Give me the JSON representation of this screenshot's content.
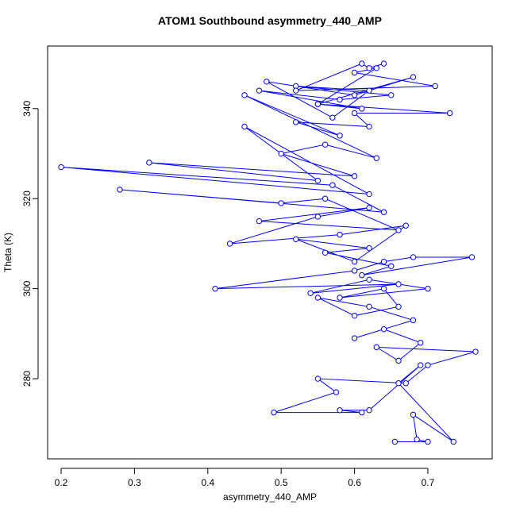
{
  "chart_data": {
    "type": "line",
    "marker": "circle",
    "title": "ATOM1 Southbound asymmetry_440_AMP",
    "x_label": "asymmetry_440_AMP",
    "y_label": "Theta (K)",
    "color": "#0000ff",
    "xlim": [
      0.1816,
      0.7877
    ],
    "ylim": [
      262.2,
      353.9
    ],
    "xticks": [
      0.2,
      0.3,
      0.4,
      0.5,
      0.6,
      0.7
    ],
    "yticks": [
      280,
      300,
      320,
      340
    ],
    "x": [
      0.655,
      0.7,
      0.685,
      0.68,
      0.735,
      0.66,
      0.69,
      0.62,
      0.58,
      0.61,
      0.49,
      0.575,
      0.55,
      0.67,
      0.7,
      0.765,
      0.63,
      0.66,
      0.69,
      0.64,
      0.6,
      0.68,
      0.62,
      0.55,
      0.6,
      0.66,
      0.64,
      0.58,
      0.7,
      0.62,
      0.54,
      0.66,
      0.41,
      0.6,
      0.64,
      0.68,
      0.76,
      0.61,
      0.65,
      0.56,
      0.62,
      0.52,
      0.6,
      0.67,
      0.58,
      0.43,
      0.55,
      0.62,
      0.47,
      0.66,
      0.56,
      0.5,
      0.28,
      0.64,
      0.57,
      0.2,
      0.62,
      0.45,
      0.55,
      0.32,
      0.6,
      0.5,
      0.56,
      0.63,
      0.45,
      0.58,
      0.52,
      0.62,
      0.6,
      0.73,
      0.55,
      0.61,
      0.47,
      0.58,
      0.65,
      0.52,
      0.62,
      0.57,
      0.48,
      0.6,
      0.68,
      0.55,
      0.63,
      0.6,
      0.71,
      0.52,
      0.61,
      0.62,
      0.64
    ],
    "y": [
      266,
      266,
      266.5,
      272,
      266,
      279,
      283,
      273,
      273,
      272.5,
      272.5,
      277,
      280,
      279,
      283,
      286,
      287,
      284,
      288,
      291,
      289,
      293,
      296,
      298,
      294,
      296,
      300,
      298,
      300,
      302,
      299,
      301,
      300,
      304,
      306,
      307,
      307,
      303,
      305,
      308,
      309,
      311,
      306,
      314,
      312,
      310,
      316,
      318,
      315,
      313,
      320,
      319,
      322,
      317,
      323,
      327,
      321,
      336,
      324,
      328,
      325,
      330,
      332,
      329,
      343,
      334,
      337,
      336,
      339,
      339,
      341,
      340,
      344,
      342,
      343,
      345,
      344,
      338,
      346,
      343,
      347,
      341,
      349,
      348,
      345,
      344,
      350,
      349,
      350
    ]
  }
}
